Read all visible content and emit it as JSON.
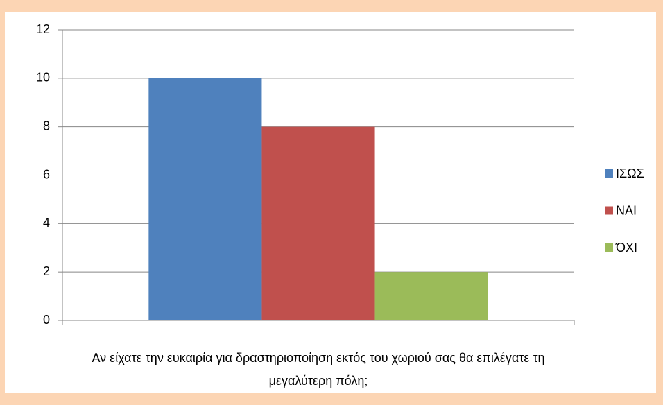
{
  "chart_data": {
    "type": "bar",
    "categories": [
      "Αν είχατε την ευκαιρία για δραστηριοποίηση εκτός του χωριού σας θα επιλέγατε τη μεγαλύτερη πόλη;"
    ],
    "series": [
      {
        "name": "ΙΣΩΣ",
        "color": "#4f81bd",
        "values": [
          10
        ]
      },
      {
        "name": "ΝΑΙ",
        "color": "#c0504d",
        "values": [
          8
        ]
      },
      {
        "name": "ΌΧΙ",
        "color": "#9bbb59",
        "values": [
          2
        ]
      }
    ],
    "ylim": [
      0,
      12
    ],
    "yticks": [
      0,
      2,
      4,
      6,
      8,
      10,
      12
    ],
    "grid": true,
    "legend": "right"
  }
}
